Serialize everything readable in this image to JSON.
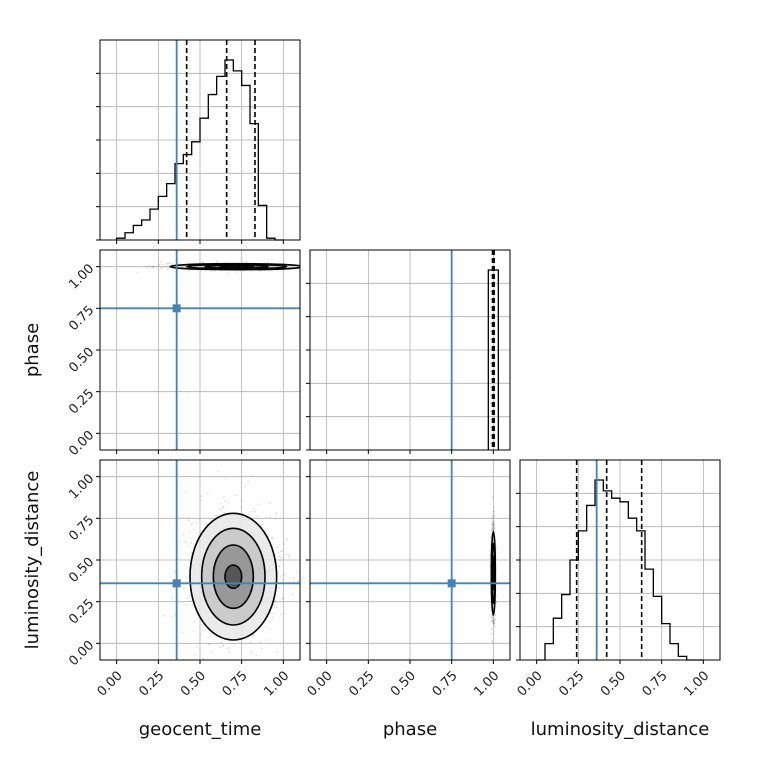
{
  "chart_data": {
    "type": "corner",
    "parameters": [
      "geocent_time",
      "phase",
      "luminosity_distance"
    ],
    "axis_labels": {
      "x": [
        "geocent_time",
        "phase",
        "luminosity_distance"
      ],
      "y": [
        "phase",
        "luminosity_distance"
      ]
    },
    "tick_labels": [
      "0.00",
      "0.25",
      "0.50",
      "0.75",
      "1.00"
    ],
    "ticks": [
      0,
      0.25,
      0.5,
      0.75,
      1.0
    ],
    "range": [
      -0.1,
      1.1
    ],
    "grid": true,
    "injection_values": {
      "geocent_time": 0.36,
      "phase": 0.75,
      "luminosity_distance": 0.36
    },
    "quantile_lines": {
      "geocent_time": [
        0.42,
        0.66,
        0.83
      ],
      "phase": [
        0.995,
        1.0,
        1.005
      ],
      "luminosity_distance": [
        0.24,
        0.42,
        0.63
      ]
    },
    "histograms": {
      "geocent_time": {
        "bin_edges": [
          0.0,
          0.05,
          0.1,
          0.15,
          0.2,
          0.25,
          0.3,
          0.35,
          0.4,
          0.45,
          0.5,
          0.55,
          0.6,
          0.65,
          0.7,
          0.75,
          0.8,
          0.85,
          0.9,
          0.95,
          1.0
        ],
        "values": [
          0.01,
          0.04,
          0.08,
          0.11,
          0.17,
          0.24,
          0.31,
          0.42,
          0.47,
          0.54,
          0.67,
          0.8,
          0.9,
          0.99,
          0.93,
          0.85,
          0.64,
          0.19,
          0.01,
          0.0
        ]
      },
      "phase": {
        "bin_edges": [
          0.97,
          1.0,
          1.03
        ],
        "values": [
          1.0,
          1.0
        ]
      },
      "luminosity_distance": {
        "bin_edges": [
          0.0,
          0.05,
          0.1,
          0.15,
          0.2,
          0.25,
          0.3,
          0.35,
          0.4,
          0.45,
          0.5,
          0.55,
          0.6,
          0.65,
          0.7,
          0.75,
          0.8,
          0.85,
          0.9,
          0.95,
          1.0
        ],
        "values": [
          0.0,
          0.09,
          0.23,
          0.36,
          0.55,
          0.71,
          0.85,
          0.99,
          0.93,
          0.89,
          0.87,
          0.78,
          0.71,
          0.5,
          0.35,
          0.2,
          0.09,
          0.02,
          0.0,
          0.0
        ]
      }
    },
    "density_2d": [
      {
        "x": "geocent_time",
        "y": "phase",
        "center": [
          0.72,
          1.0
        ],
        "contours": [
          {
            "rx": 0.4,
            "ry": 0.018
          },
          {
            "rx": 0.3,
            "ry": 0.013
          },
          {
            "rx": 0.19,
            "ry": 0.009
          },
          {
            "rx": 0.1,
            "ry": 0.005
          }
        ]
      },
      {
        "x": "geocent_time",
        "y": "luminosity_distance",
        "center": [
          0.7,
          0.4
        ],
        "contours": [
          {
            "rx": 0.26,
            "ry": 0.38
          },
          {
            "rx": 0.19,
            "ry": 0.29
          },
          {
            "rx": 0.12,
            "ry": 0.19
          },
          {
            "rx": 0.05,
            "ry": 0.07
          }
        ]
      },
      {
        "x": "phase",
        "y": "luminosity_distance",
        "center": [
          1.0,
          0.42
        ],
        "contours": [
          {
            "rx": 0.012,
            "ry": 0.25
          },
          {
            "rx": 0.008,
            "ry": 0.18
          },
          {
            "rx": 0.005,
            "ry": 0.1
          }
        ]
      }
    ]
  }
}
